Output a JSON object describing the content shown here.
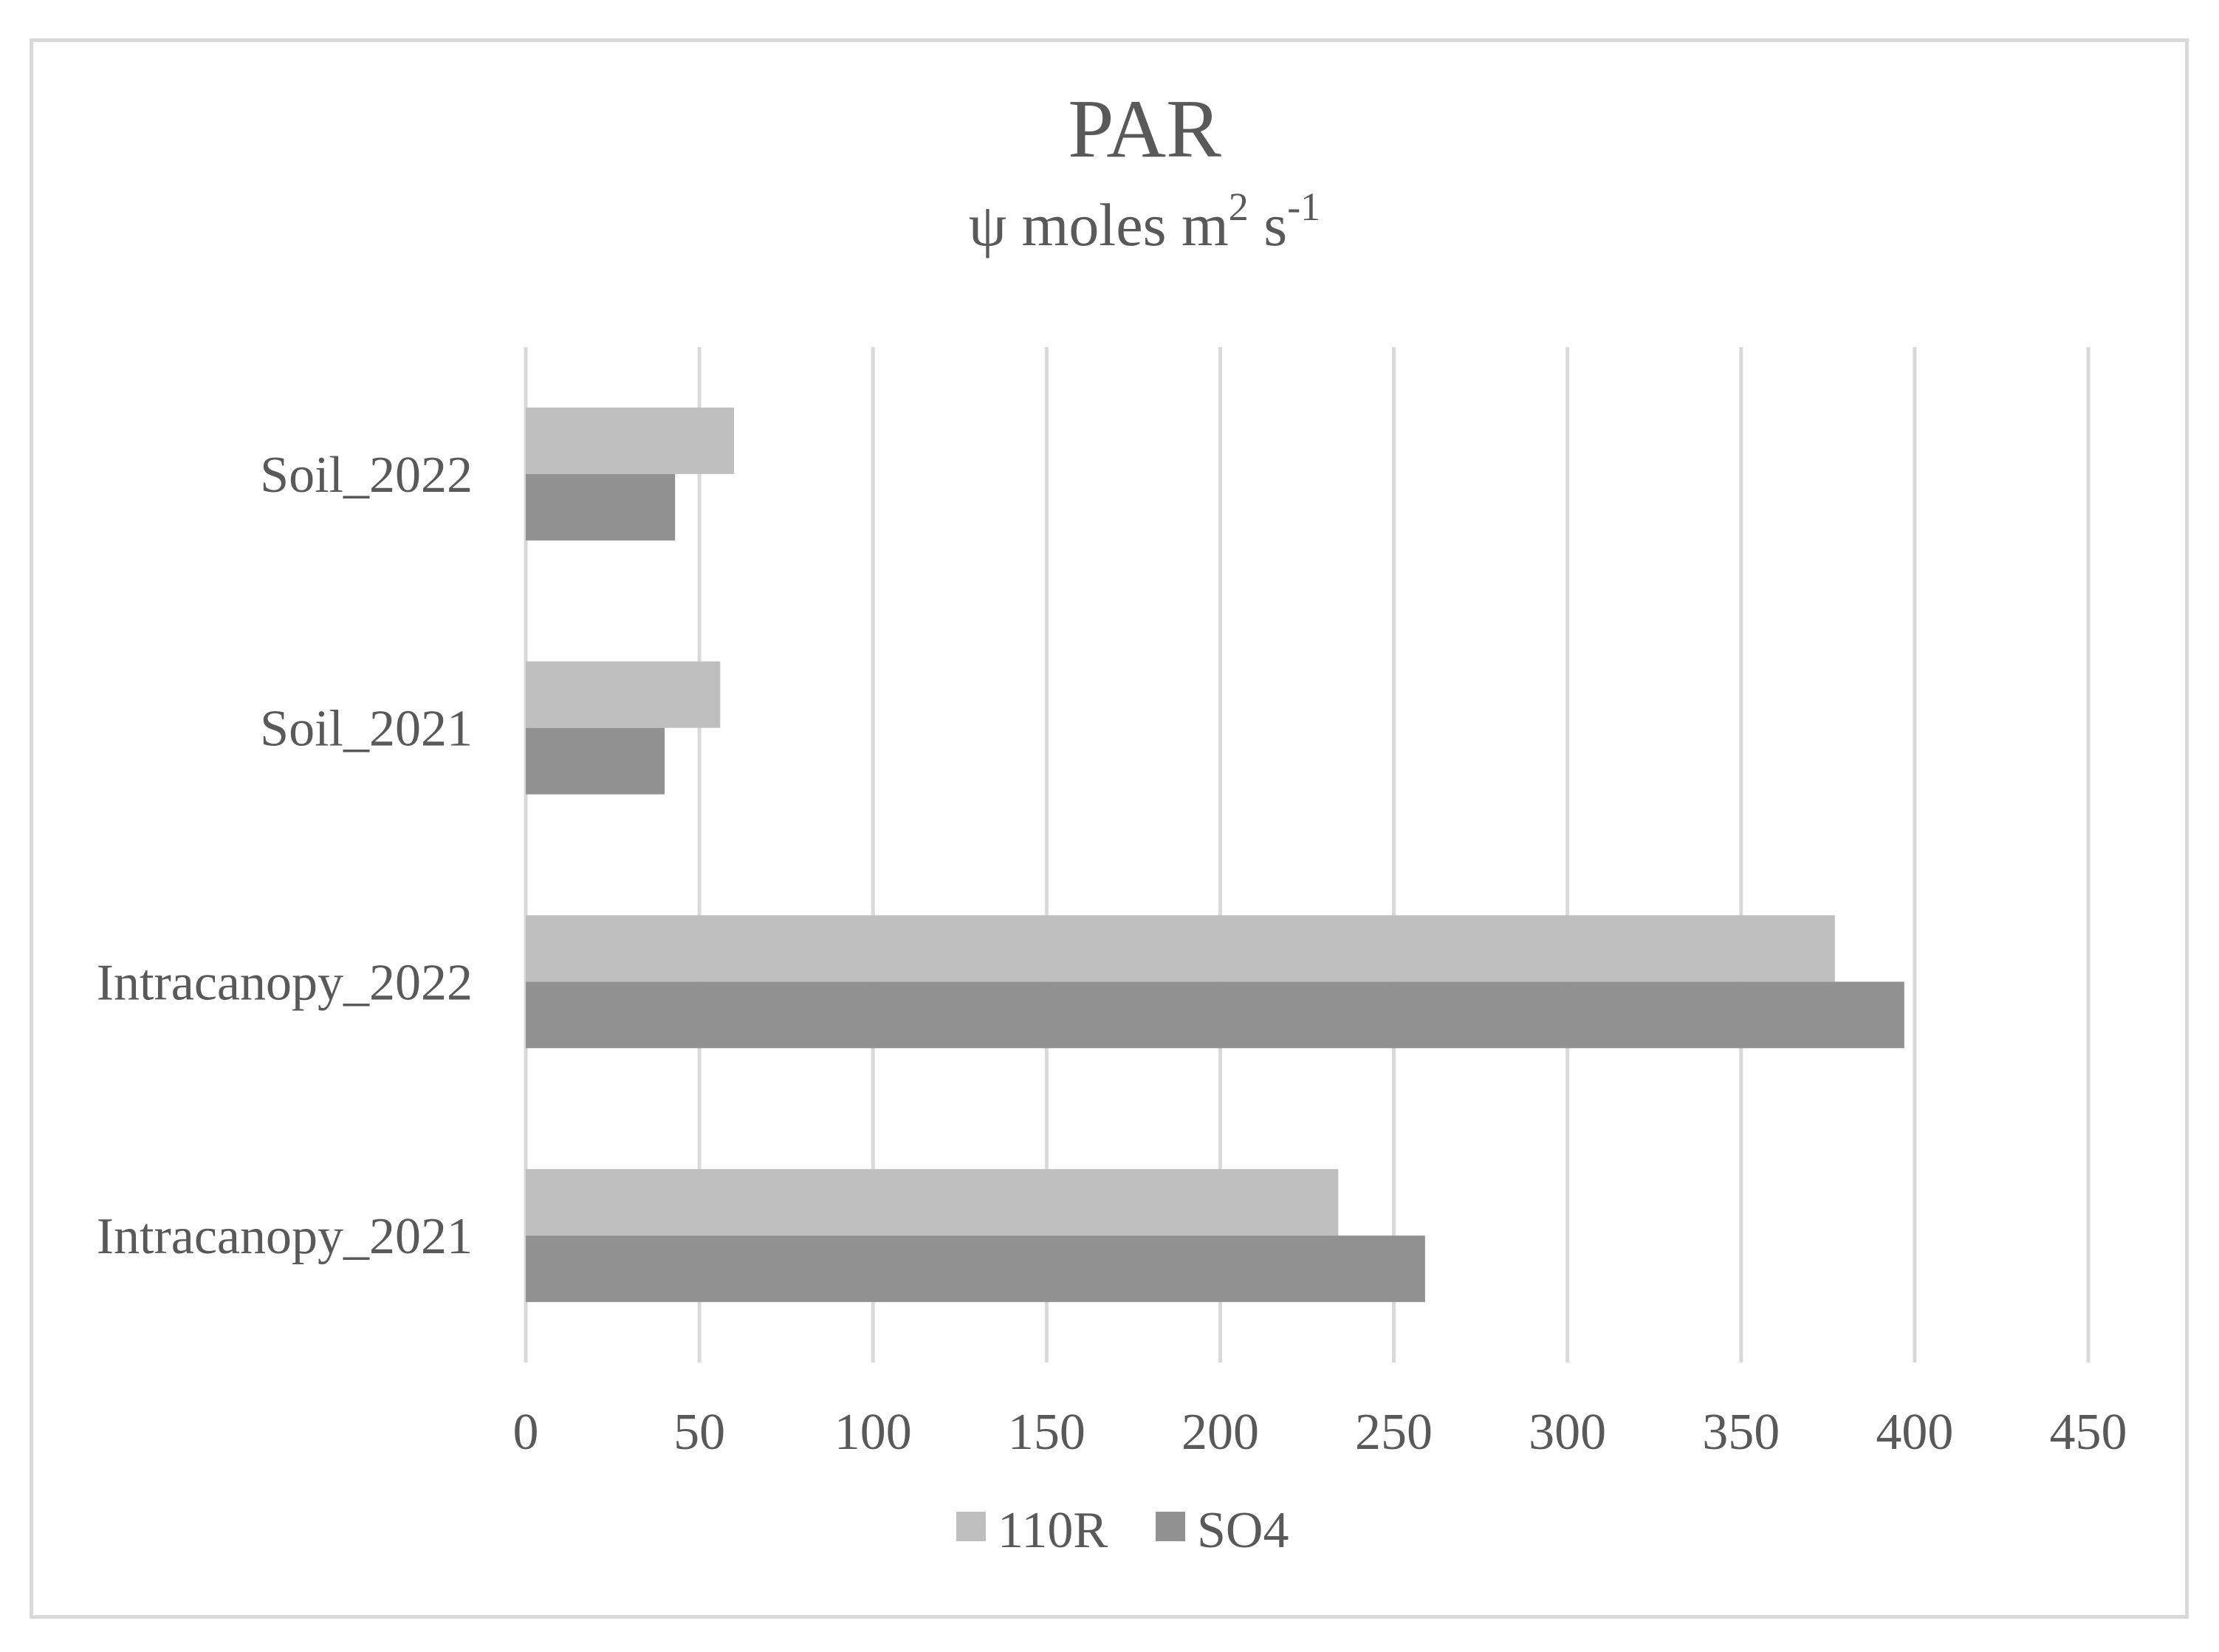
{
  "chart_data": {
    "type": "bar",
    "orientation": "horizontal",
    "title": "PAR",
    "subtitle": {
      "prefix": "ψ moles m",
      "sup1": "2",
      "mid": " s",
      "sup2": "-1"
    },
    "categories": [
      "Intracanopy_2021",
      "Intracanopy_2022",
      "Soil_2021",
      "Soil_2022"
    ],
    "series": [
      {
        "name": "110R",
        "values": [
          234,
          377,
          56,
          60
        ],
        "color": "#bfbfbf"
      },
      {
        "name": "SO4",
        "values": [
          259,
          397,
          40,
          43
        ],
        "color": "#919191"
      }
    ],
    "xlim": [
      0,
      450
    ],
    "xticks": [
      "0",
      "50",
      "100",
      "150",
      "200",
      "250",
      "300",
      "350",
      "400",
      "450"
    ],
    "grid": true,
    "legend_position": "bottom",
    "colors": {
      "grid": "#d9d9d9",
      "text": "#595959",
      "frame": "#d9d9d9"
    }
  }
}
